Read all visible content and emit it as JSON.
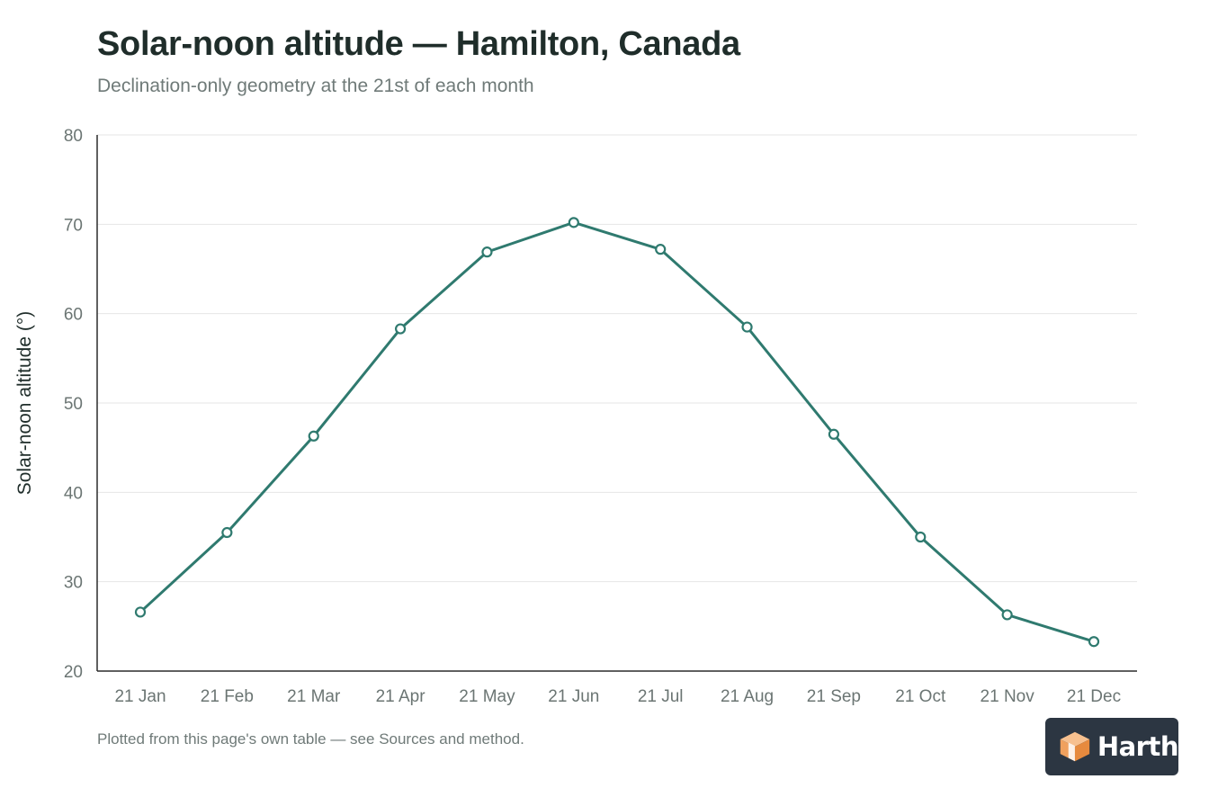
{
  "header": {
    "title": "Solar-noon altitude — Hamilton, Canada",
    "subtitle": "Declination-only geometry at the 21st of each month"
  },
  "footnote": "Plotted from this page's own table — see Sources and method.",
  "logo": {
    "text": "Harth",
    "icon": "cube-icon"
  },
  "colors": {
    "line": "#2f7a6f",
    "grid": "#e6e6e6",
    "axis": "#2b2b2b"
  },
  "chart_data": {
    "type": "line",
    "title": "Solar-noon altitude — Hamilton, Canada",
    "subtitle": "Declination-only geometry at the 21st of each month",
    "xlabel": "",
    "ylabel": "Solar-noon altitude (°)",
    "categories": [
      "21 Jan",
      "21 Feb",
      "21 Mar",
      "21 Apr",
      "21 May",
      "21 Jun",
      "21 Jul",
      "21 Aug",
      "21 Sep",
      "21 Oct",
      "21 Nov",
      "21 Dec"
    ],
    "series": [
      {
        "values": [
          26.6,
          35.5,
          46.3,
          58.3,
          66.9,
          70.2,
          67.2,
          58.5,
          46.5,
          35.0,
          26.3,
          23.3
        ]
      }
    ],
    "ylim": [
      20,
      80
    ],
    "yticks": [
      20,
      30,
      40,
      50,
      60,
      70,
      80
    ],
    "grid": true,
    "legend": "none"
  }
}
